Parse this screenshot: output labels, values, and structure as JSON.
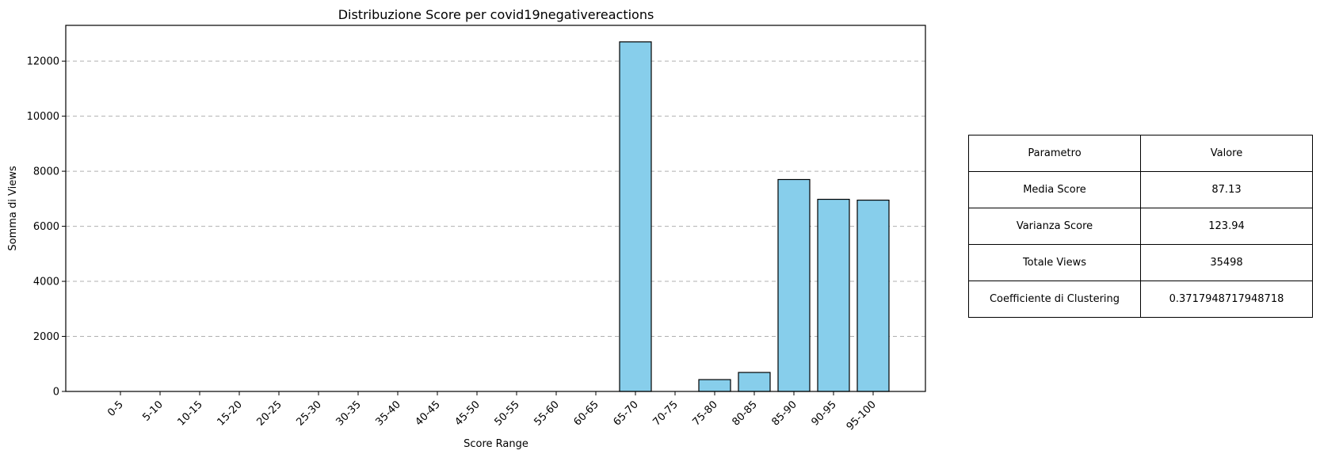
{
  "chart_data": {
    "type": "bar",
    "title": "Distribuzione Score per covid19negativereactions",
    "xlabel": "Score Range",
    "ylabel": "Somma di Views",
    "categories": [
      "0-5",
      "5-10",
      "10-15",
      "15-20",
      "20-25",
      "25-30",
      "30-35",
      "35-40",
      "40-45",
      "45-50",
      "50-55",
      "55-60",
      "60-65",
      "65-70",
      "70-75",
      "75-80",
      "80-85",
      "85-90",
      "90-95",
      "95-100"
    ],
    "values": [
      0,
      0,
      0,
      0,
      0,
      0,
      0,
      0,
      0,
      0,
      0,
      0,
      0,
      12700,
      0,
      430,
      690,
      7700,
      6980,
      6950
    ],
    "ylim": [
      0,
      13300
    ],
    "yticks": [
      0,
      2000,
      4000,
      6000,
      8000,
      10000,
      12000
    ],
    "grid": "y-dashed",
    "bar_color": "#87ceeb",
    "edge_color": "#000000"
  },
  "table": {
    "header": {
      "param": "Parametro",
      "value": "Valore"
    },
    "rows": [
      {
        "param": "Media Score",
        "value": "87.13"
      },
      {
        "param": "Varianza Score",
        "value": "123.94"
      },
      {
        "param": "Totale Views",
        "value": "35498"
      },
      {
        "param": "Coefficiente di Clustering",
        "value": "0.3717948717948718"
      }
    ]
  }
}
